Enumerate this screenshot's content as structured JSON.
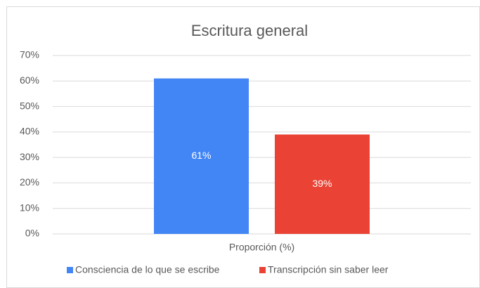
{
  "chart_data": {
    "type": "bar",
    "title": "Escritura general",
    "categories": [
      "Proporción (%)"
    ],
    "series": [
      {
        "name": "Consciencia de lo que se escribe",
        "color": "#4285f4",
        "values": [
          61
        ],
        "value_labels": [
          "61%"
        ]
      },
      {
        "name": "Transcripción sin saber leer",
        "color": "#ea4335",
        "values": [
          39
        ],
        "value_labels": [
          "39%"
        ]
      }
    ],
    "ylim": [
      0,
      70
    ],
    "yticks": [
      {
        "value": 0,
        "label": "0%"
      },
      {
        "value": 10,
        "label": "10%"
      },
      {
        "value": 20,
        "label": "20%"
      },
      {
        "value": 30,
        "label": "30%"
      },
      {
        "value": 40,
        "label": "40%"
      },
      {
        "value": 50,
        "label": "50%"
      },
      {
        "value": 60,
        "label": "60%"
      },
      {
        "value": 70,
        "label": "70%"
      }
    ],
    "grid": true,
    "legend": "bottom"
  }
}
